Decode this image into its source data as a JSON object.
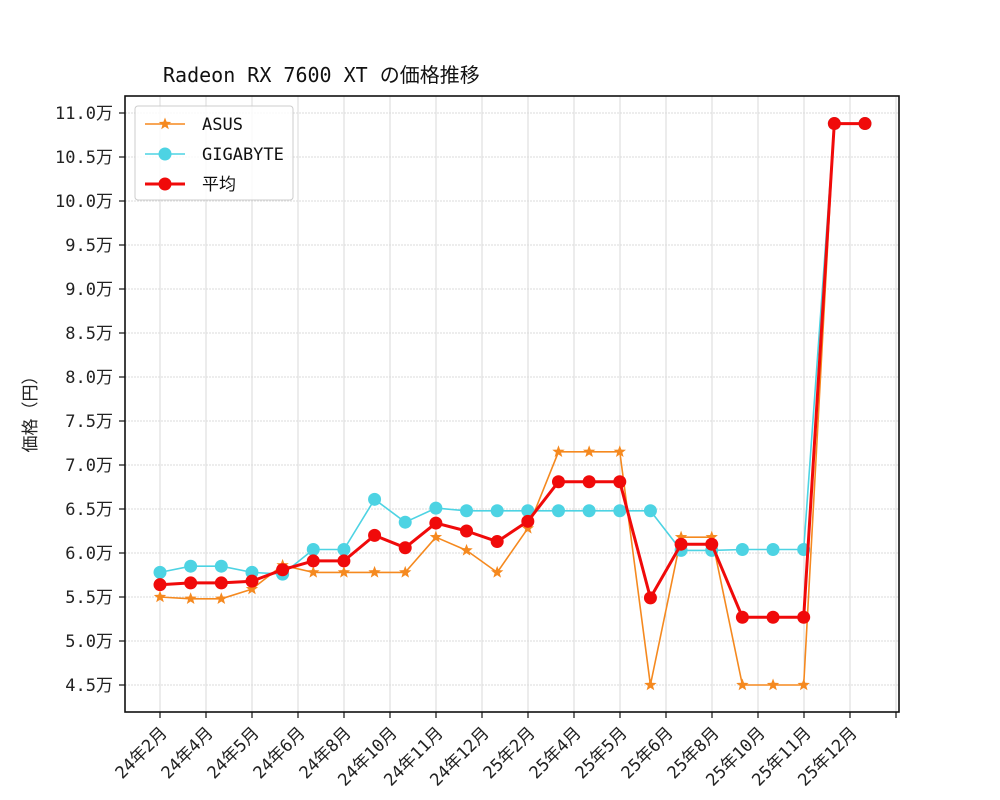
{
  "chart_data": {
    "type": "line",
    "title": "Radeon RX 7600 XT の価格推移",
    "xlabel": "",
    "ylabel": "価格（円）",
    "ylim": [
      42000,
      112000
    ],
    "grid": true,
    "legend_position": "upper left",
    "y_ticks": [
      45000,
      50000,
      55000,
      60000,
      65000,
      70000,
      75000,
      80000,
      85000,
      90000,
      95000,
      100000,
      105000,
      110000
    ],
    "y_tick_labels": [
      "4.5万",
      "5.0万",
      "5.5万",
      "6.0万",
      "6.5万",
      "7.0万",
      "7.5万",
      "8.0万",
      "8.5万",
      "9.0万",
      "9.5万",
      "10.0万",
      "10.5万",
      "11.0万"
    ],
    "x_tick_labels": [
      "24年2月",
      "24年4月",
      "24年5月",
      "24年6月",
      "24年8月",
      "24年10月",
      "24年11月",
      "24年12月",
      "25年2月",
      "25年4月",
      "25年5月",
      "25年6月",
      "25年8月",
      "25年10月",
      "25年11月",
      "25年12月"
    ],
    "point_count": 24,
    "series": [
      {
        "name": "ASUS",
        "color": "#f5891f",
        "marker": "star",
        "values": [
          55000,
          54800,
          54800,
          55900,
          58600,
          57800,
          57800,
          57800,
          57800,
          61800,
          60300,
          57800,
          62800,
          71500,
          71500,
          71500,
          45000,
          61800,
          61800,
          45000,
          45000,
          45000,
          108800,
          108800
        ]
      },
      {
        "name": "GIGABYTE",
        "color": "#4dd3e3",
        "marker": "circle",
        "values": [
          57800,
          58500,
          58500,
          57800,
          57600,
          60400,
          60400,
          66100,
          63500,
          65100,
          64800,
          64800,
          64800,
          64800,
          64800,
          64800,
          64800,
          60300,
          60300,
          60400,
          60400,
          60400,
          108800,
          108800
        ]
      },
      {
        "name": "平均",
        "color": "#f00a0a",
        "marker": "circle",
        "values": [
          56400,
          56600,
          56600,
          56800,
          58100,
          59100,
          59100,
          62000,
          60600,
          63400,
          62500,
          61300,
          63600,
          68100,
          68100,
          68100,
          54900,
          61000,
          61000,
          52700,
          52700,
          52700,
          108800,
          108800
        ]
      }
    ]
  }
}
